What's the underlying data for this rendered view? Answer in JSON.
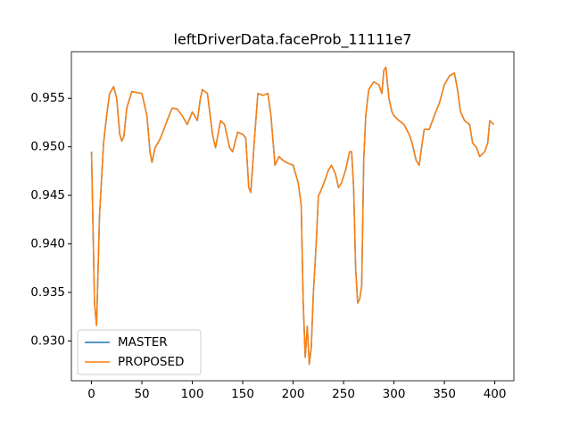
{
  "chart_data": {
    "type": "line",
    "title": "leftDriverData.faceProb_11111e7",
    "x": [
      0,
      3,
      5,
      8,
      12,
      15,
      18,
      22,
      25,
      28,
      30,
      32,
      35,
      40,
      45,
      50,
      55,
      58,
      60,
      63,
      67,
      70,
      75,
      80,
      85,
      90,
      95,
      100,
      105,
      108,
      110,
      115,
      120,
      123,
      128,
      132,
      137,
      140,
      145,
      150,
      153,
      156,
      158,
      162,
      165,
      170,
      175,
      178,
      182,
      186,
      190,
      195,
      200,
      205,
      208,
      210,
      212,
      214,
      216,
      218,
      220,
      223,
      225,
      228,
      232,
      235,
      238,
      242,
      245,
      248,
      252,
      256,
      258,
      260,
      262,
      264,
      266,
      268,
      270,
      272,
      275,
      280,
      285,
      288,
      290,
      292,
      295,
      298,
      300,
      305,
      310,
      315,
      318,
      322,
      325,
      328,
      330,
      335,
      340,
      345,
      350,
      355,
      360,
      363,
      366,
      370,
      375,
      378,
      382,
      385,
      390,
      393,
      395,
      399
    ],
    "series": [
      {
        "name": "MASTER",
        "color": "#1f77b4",
        "values": [
          0.9495,
          0.9339,
          0.9316,
          0.943,
          0.9504,
          0.9532,
          0.9555,
          0.9562,
          0.955,
          0.9513,
          0.9506,
          0.951,
          0.954,
          0.9557,
          0.9556,
          0.9555,
          0.9532,
          0.9495,
          0.9484,
          0.9499,
          0.9506,
          0.9513,
          0.9527,
          0.954,
          0.9539,
          0.9532,
          0.9523,
          0.9536,
          0.9527,
          0.955,
          0.9559,
          0.9555,
          0.9513,
          0.9499,
          0.9527,
          0.9523,
          0.9499,
          0.9495,
          0.9515,
          0.9513,
          0.9509,
          0.9458,
          0.9453,
          0.9513,
          0.9555,
          0.9553,
          0.9555,
          0.9532,
          0.9481,
          0.949,
          0.9486,
          0.9483,
          0.9481,
          0.9463,
          0.944,
          0.9339,
          0.9283,
          0.9315,
          0.9276,
          0.9293,
          0.9348,
          0.9403,
          0.9449,
          0.9456,
          0.9467,
          0.9476,
          0.9481,
          0.9472,
          0.9458,
          0.9463,
          0.9476,
          0.9495,
          0.9495,
          0.9458,
          0.9375,
          0.9339,
          0.9343,
          0.9357,
          0.9486,
          0.9532,
          0.9559,
          0.9567,
          0.9564,
          0.9555,
          0.9579,
          0.9582,
          0.955,
          0.9536,
          0.9532,
          0.9527,
          0.9523,
          0.9513,
          0.9504,
          0.9486,
          0.9481,
          0.9504,
          0.9518,
          0.9518,
          0.9532,
          0.9545,
          0.9564,
          0.9573,
          0.9576,
          0.9559,
          0.9536,
          0.9527,
          0.9523,
          0.9504,
          0.9499,
          0.949,
          0.9495,
          0.9504,
          0.9527,
          0.9523
        ]
      },
      {
        "name": "PROPOSED",
        "color": "#ff7f0e",
        "values": [
          0.9495,
          0.9339,
          0.9316,
          0.943,
          0.9504,
          0.9532,
          0.9555,
          0.9562,
          0.955,
          0.9513,
          0.9506,
          0.951,
          0.954,
          0.9557,
          0.9556,
          0.9555,
          0.9532,
          0.9495,
          0.9484,
          0.9499,
          0.9506,
          0.9513,
          0.9527,
          0.954,
          0.9539,
          0.9532,
          0.9523,
          0.9536,
          0.9527,
          0.955,
          0.9559,
          0.9555,
          0.9513,
          0.9499,
          0.9527,
          0.9523,
          0.9499,
          0.9495,
          0.9515,
          0.9513,
          0.9509,
          0.9458,
          0.9453,
          0.9513,
          0.9555,
          0.9553,
          0.9555,
          0.9532,
          0.9481,
          0.949,
          0.9486,
          0.9483,
          0.9481,
          0.9463,
          0.944,
          0.9339,
          0.9283,
          0.9315,
          0.9276,
          0.9293,
          0.9348,
          0.9403,
          0.9449,
          0.9456,
          0.9467,
          0.9476,
          0.9481,
          0.9472,
          0.9458,
          0.9463,
          0.9476,
          0.9495,
          0.9495,
          0.9458,
          0.9375,
          0.9339,
          0.9343,
          0.9357,
          0.9486,
          0.9532,
          0.9559,
          0.9567,
          0.9564,
          0.9555,
          0.9579,
          0.9582,
          0.955,
          0.9536,
          0.9532,
          0.9527,
          0.9523,
          0.9513,
          0.9504,
          0.9486,
          0.9481,
          0.9504,
          0.9518,
          0.9518,
          0.9532,
          0.9545,
          0.9564,
          0.9573,
          0.9576,
          0.9559,
          0.9536,
          0.9527,
          0.9523,
          0.9504,
          0.9499,
          0.949,
          0.9495,
          0.9504,
          0.9527,
          0.9523
        ]
      }
    ],
    "xlim": [
      -19.95,
      418.95
    ],
    "xticks": [
      0,
      50,
      100,
      150,
      200,
      250,
      300,
      350,
      400
    ],
    "ylim": [
      0.9259,
      0.9598
    ],
    "yticks": [
      {
        "value": 0.93,
        "label": "0.930"
      },
      {
        "value": 0.935,
        "label": "0.935"
      },
      {
        "value": 0.94,
        "label": "0.940"
      },
      {
        "value": 0.945,
        "label": "0.945"
      },
      {
        "value": 0.95,
        "label": "0.950"
      },
      {
        "value": 0.955,
        "label": "0.955"
      }
    ],
    "legend": "lower left"
  }
}
